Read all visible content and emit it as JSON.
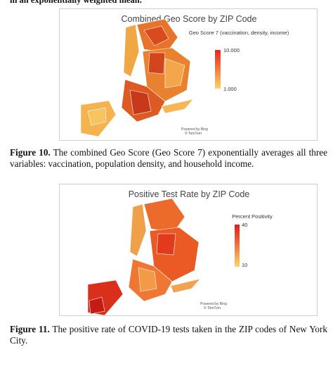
{
  "intro_text": "in an exponentially weighted mean.",
  "figures": [
    {
      "title": "Combined Geo Score by ZIP Code",
      "legend_title": "Geo Score 7 (vaccination, density, income)",
      "legend_max": "10.000",
      "legend_min": "1.000",
      "attribution": [
        "Powered by Bing",
        "© TomTom"
      ],
      "caption_label": "Figure 10.",
      "caption": "The combined Geo Score (Geo Score 7) exponentially averages all three variables: vaccination, population density, and household income."
    },
    {
      "title": "Positive Test Rate by ZIP Code",
      "legend_title": "Percent Positivity",
      "legend_max": "40",
      "legend_min": "10",
      "attribution": [
        "Powered by Bing",
        "© TomTom"
      ],
      "caption_label": "Figure 11.",
      "caption": "The positive rate of COVID-19 tests taken in the ZIP codes of New York City."
    }
  ]
}
